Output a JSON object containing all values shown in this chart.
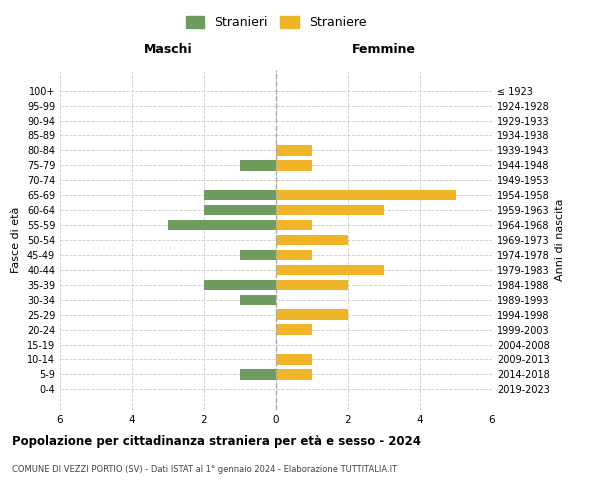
{
  "age_groups": [
    "100+",
    "95-99",
    "90-94",
    "85-89",
    "80-84",
    "75-79",
    "70-74",
    "65-69",
    "60-64",
    "55-59",
    "50-54",
    "45-49",
    "40-44",
    "35-39",
    "30-34",
    "25-29",
    "20-24",
    "15-19",
    "10-14",
    "5-9",
    "0-4"
  ],
  "birth_years": [
    "≤ 1923",
    "1924-1928",
    "1929-1933",
    "1934-1938",
    "1939-1943",
    "1944-1948",
    "1949-1953",
    "1954-1958",
    "1959-1963",
    "1964-1968",
    "1969-1973",
    "1974-1978",
    "1979-1983",
    "1984-1988",
    "1989-1993",
    "1994-1998",
    "1999-2003",
    "2004-2008",
    "2009-2013",
    "2014-2018",
    "2019-2023"
  ],
  "maschi": [
    0,
    0,
    0,
    0,
    0,
    1,
    0,
    2,
    2,
    3,
    0,
    1,
    0,
    2,
    1,
    0,
    0,
    0,
    0,
    1,
    0
  ],
  "femmine": [
    0,
    0,
    0,
    0,
    1,
    1,
    0,
    5,
    3,
    1,
    2,
    1,
    3,
    2,
    0,
    2,
    1,
    0,
    1,
    1,
    0
  ],
  "maschi_color": "#6e9b5e",
  "femmine_color": "#f0b429",
  "title": "Popolazione per cittadinanza straniera per età e sesso - 2024",
  "subtitle": "COMUNE DI VEZZI PORTIO (SV) - Dati ISTAT al 1° gennaio 2024 - Elaborazione TUTTITALIA.IT",
  "left_label": "Maschi",
  "right_label": "Femmine",
  "ylabel_left": "Fasce di età",
  "ylabel_right": "Anni di nascita",
  "legend_stranieri": "Stranieri",
  "legend_straniere": "Straniere",
  "xlim": 6,
  "bar_height": 0.7,
  "background_color": "#ffffff",
  "grid_color": "#cccccc"
}
